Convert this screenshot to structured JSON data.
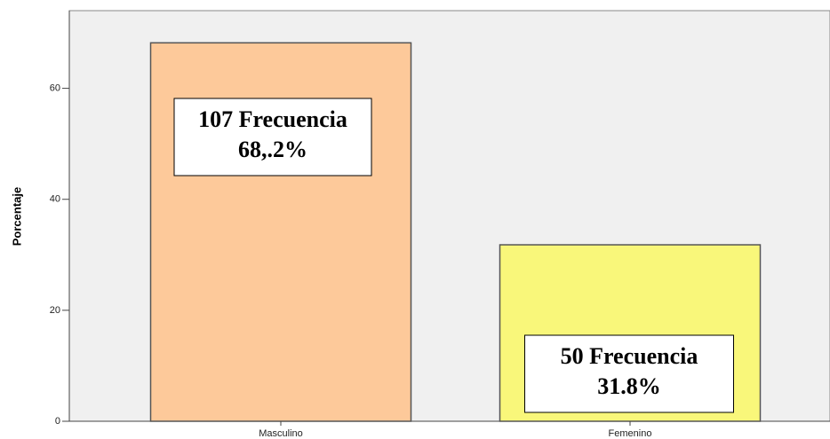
{
  "chart_data": {
    "type": "bar",
    "ylabel": "Porcentaje",
    "categories": [
      "Masculino",
      "Femenino"
    ],
    "values": [
      68.2,
      31.8
    ],
    "colors": [
      "#fdc99a",
      "#f9f77a"
    ],
    "ylim": [
      0,
      74
    ],
    "yticks": [
      0,
      20,
      40,
      60
    ],
    "grid": false,
    "annotations": [
      {
        "lines": [
          "107 Frecuencia",
          "68,.2%"
        ]
      },
      {
        "lines": [
          "50 Frecuencia",
          "31.8%"
        ]
      }
    ]
  }
}
